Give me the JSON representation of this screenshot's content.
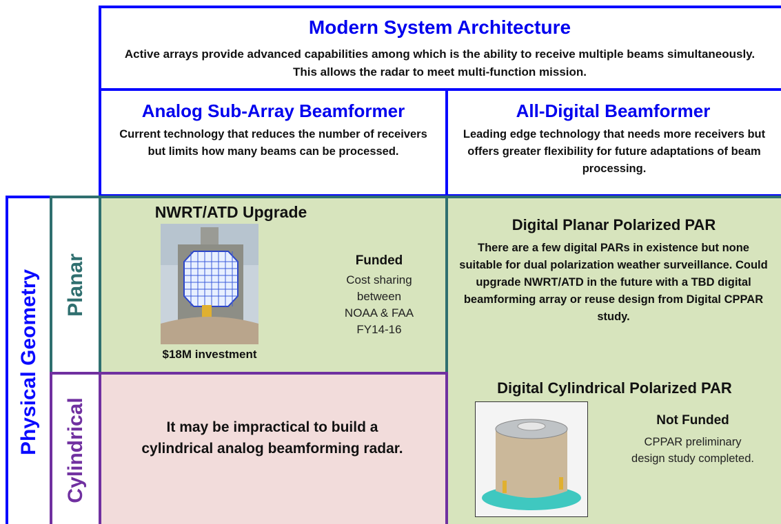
{
  "header": {
    "title": "Modern System Architecture",
    "description": "Active arrays provide advanced capabilities among which is the ability to receive multiple beams simultaneously. This allows the radar to meet multi-function mission."
  },
  "columns": [
    {
      "title": "Analog Sub-Array Beamformer",
      "description": "Current technology that reduces the number of receivers but limits how many beams can be processed."
    },
    {
      "title": "All-Digital Beamformer",
      "description": "Leading edge technology that needs more receivers but offers greater flexibility for future adaptations of beam processing."
    }
  ],
  "row_group": {
    "label": "Physical Geometry"
  },
  "rows": [
    {
      "label": "Planar",
      "cells": [
        {
          "title": "NWRT/ATD Upgrade",
          "caption": "$18M investment",
          "status": "Funded",
          "note_lines": [
            "Cost sharing",
            "between",
            "NOAA & FAA",
            "FY14-16"
          ]
        },
        {
          "title": "Digital Planar Polarized PAR",
          "description": "There are a few digital PARs in existence but none suitable for dual polarization weather surveillance. Could upgrade NWRT/ATD in the future with a TBD digital beamforming array or reuse design from Digital CPPAR study."
        }
      ]
    },
    {
      "label": "Cylindrical",
      "cells": [
        {
          "text": "It may be impractical to build a cylindrical analog beamforming radar."
        },
        {
          "title": "Digital Cylindrical Polarized PAR",
          "status": "Not Funded",
          "note": "CPPAR preliminary design study completed."
        }
      ]
    }
  ]
}
